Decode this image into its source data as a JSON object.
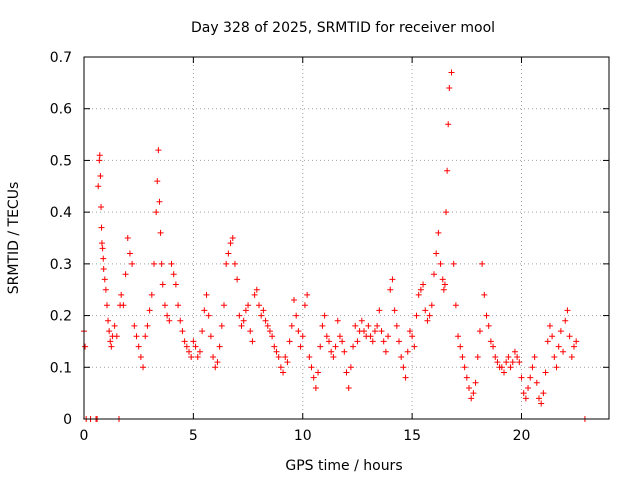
{
  "chart_data": {
    "type": "scatter",
    "title": "Day 328 of 2025, SRMTID for receiver mool",
    "xlabel": "GPS time / hours",
    "ylabel": "SRMTID / TECUs",
    "xlim": [
      0,
      24
    ],
    "ylim": [
      0,
      0.7
    ],
    "xticks": [
      0,
      5,
      10,
      15,
      20
    ],
    "xtick_labels": [
      "0",
      "5",
      "10",
      "15",
      "20"
    ],
    "yticks": [
      0,
      0.1,
      0.2,
      0.3,
      0.4,
      0.5,
      0.6,
      0.7
    ],
    "ytick_labels": [
      "0",
      "0.1",
      "0.2",
      "0.3",
      "0.4",
      "0.5",
      "0.6",
      "0.7"
    ],
    "grid": true,
    "marker": "+",
    "series_color": "#ff0000",
    "series": [
      {
        "name": "SRMTID",
        "x": [
          0.0,
          0.05,
          0.1,
          0.3,
          0.55,
          0.6,
          0.65,
          0.7,
          0.72,
          0.75,
          0.78,
          0.8,
          0.82,
          0.85,
          0.88,
          0.9,
          0.95,
          1.0,
          1.05,
          1.1,
          1.15,
          1.2,
          1.25,
          1.3,
          1.4,
          1.5,
          1.6,
          1.65,
          1.7,
          1.8,
          1.9,
          2.0,
          2.1,
          2.2,
          2.3,
          2.4,
          2.5,
          2.6,
          2.7,
          2.8,
          2.9,
          3.0,
          3.1,
          3.2,
          3.3,
          3.35,
          3.4,
          3.45,
          3.5,
          3.55,
          3.6,
          3.7,
          3.8,
          3.9,
          4.0,
          4.1,
          4.2,
          4.3,
          4.4,
          4.5,
          4.6,
          4.7,
          4.8,
          4.9,
          5.0,
          5.1,
          5.2,
          5.3,
          5.4,
          5.5,
          5.6,
          5.7,
          5.8,
          5.9,
          6.0,
          6.1,
          6.2,
          6.3,
          6.4,
          6.5,
          6.6,
          6.7,
          6.8,
          6.9,
          7.0,
          7.1,
          7.2,
          7.3,
          7.4,
          7.5,
          7.6,
          7.7,
          7.8,
          7.9,
          8.0,
          8.1,
          8.2,
          8.3,
          8.4,
          8.5,
          8.6,
          8.7,
          8.8,
          8.9,
          9.0,
          9.1,
          9.2,
          9.3,
          9.4,
          9.5,
          9.6,
          9.7,
          9.8,
          9.9,
          10.0,
          10.1,
          10.2,
          10.3,
          10.4,
          10.5,
          10.6,
          10.7,
          10.8,
          10.9,
          11.0,
          11.1,
          11.2,
          11.3,
          11.4,
          11.5,
          11.6,
          11.7,
          11.8,
          11.9,
          12.0,
          12.1,
          12.2,
          12.3,
          12.4,
          12.5,
          12.6,
          12.7,
          12.8,
          12.9,
          13.0,
          13.1,
          13.2,
          13.3,
          13.4,
          13.5,
          13.6,
          13.7,
          13.8,
          13.9,
          14.0,
          14.1,
          14.2,
          14.3,
          14.4,
          14.5,
          14.6,
          14.7,
          14.8,
          14.9,
          15.0,
          15.1,
          15.2,
          15.3,
          15.4,
          15.5,
          15.6,
          15.7,
          15.8,
          15.9,
          16.0,
          16.1,
          16.2,
          16.3,
          16.4,
          16.45,
          16.5,
          16.55,
          16.6,
          16.65,
          16.7,
          16.8,
          16.9,
          17.0,
          17.1,
          17.2,
          17.3,
          17.4,
          17.5,
          17.6,
          17.7,
          17.8,
          17.9,
          18.0,
          18.1,
          18.2,
          18.3,
          18.4,
          18.5,
          18.6,
          18.7,
          18.8,
          18.9,
          19.0,
          19.1,
          19.2,
          19.3,
          19.4,
          19.5,
          19.6,
          19.7,
          19.8,
          19.9,
          20.0,
          20.1,
          20.2,
          20.3,
          20.4,
          20.5,
          20.6,
          20.7,
          20.8,
          20.9,
          21.0,
          21.1,
          21.2,
          21.3,
          21.4,
          21.5,
          21.6,
          21.7,
          21.8,
          21.9,
          22.0,
          22.1,
          22.2,
          22.3,
          22.4,
          22.5,
          22.9
        ],
        "y": [
          0.17,
          0.14,
          0.0,
          0.0,
          0.0,
          0.0,
          0.45,
          0.5,
          0.51,
          0.47,
          0.41,
          0.37,
          0.34,
          0.33,
          0.31,
          0.29,
          0.27,
          0.25,
          0.22,
          0.19,
          0.17,
          0.15,
          0.14,
          0.16,
          0.18,
          0.16,
          0.0,
          0.22,
          0.24,
          0.22,
          0.28,
          0.35,
          0.32,
          0.3,
          0.18,
          0.16,
          0.14,
          0.12,
          0.1,
          0.16,
          0.18,
          0.21,
          0.24,
          0.3,
          0.4,
          0.46,
          0.52,
          0.42,
          0.36,
          0.3,
          0.26,
          0.22,
          0.2,
          0.19,
          0.3,
          0.28,
          0.26,
          0.22,
          0.19,
          0.17,
          0.15,
          0.14,
          0.13,
          0.12,
          0.15,
          0.14,
          0.12,
          0.13,
          0.17,
          0.21,
          0.24,
          0.2,
          0.16,
          0.12,
          0.1,
          0.11,
          0.14,
          0.18,
          0.22,
          0.3,
          0.32,
          0.34,
          0.35,
          0.3,
          0.27,
          0.2,
          0.18,
          0.19,
          0.21,
          0.22,
          0.17,
          0.15,
          0.24,
          0.25,
          0.22,
          0.2,
          0.21,
          0.19,
          0.18,
          0.17,
          0.16,
          0.14,
          0.13,
          0.12,
          0.1,
          0.09,
          0.12,
          0.11,
          0.15,
          0.18,
          0.23,
          0.2,
          0.17,
          0.14,
          0.16,
          0.22,
          0.24,
          0.12,
          0.1,
          0.08,
          0.06,
          0.09,
          0.14,
          0.18,
          0.2,
          0.16,
          0.15,
          0.13,
          0.12,
          0.14,
          0.19,
          0.16,
          0.15,
          0.13,
          0.09,
          0.06,
          0.1,
          0.14,
          0.18,
          0.15,
          0.17,
          0.19,
          0.17,
          0.16,
          0.18,
          0.16,
          0.15,
          0.17,
          0.18,
          0.21,
          0.17,
          0.15,
          0.13,
          0.16,
          0.25,
          0.27,
          0.21,
          0.18,
          0.15,
          0.12,
          0.1,
          0.08,
          0.13,
          0.17,
          0.16,
          0.14,
          0.2,
          0.24,
          0.25,
          0.26,
          0.21,
          0.19,
          0.2,
          0.22,
          0.28,
          0.32,
          0.36,
          0.3,
          0.27,
          0.25,
          0.26,
          0.4,
          0.48,
          0.57,
          0.64,
          0.67,
          0.3,
          0.22,
          0.16,
          0.14,
          0.12,
          0.1,
          0.08,
          0.06,
          0.04,
          0.05,
          0.07,
          0.12,
          0.17,
          0.3,
          0.24,
          0.2,
          0.18,
          0.15,
          0.14,
          0.12,
          0.11,
          0.1,
          0.1,
          0.09,
          0.11,
          0.12,
          0.1,
          0.11,
          0.13,
          0.12,
          0.11,
          0.08,
          0.05,
          0.04,
          0.06,
          0.08,
          0.1,
          0.12,
          0.07,
          0.04,
          0.03,
          0.05,
          0.09,
          0.15,
          0.18,
          0.16,
          0.12,
          0.1,
          0.14,
          0.17,
          0.13,
          0.19,
          0.21,
          0.16,
          0.12,
          0.14,
          0.15,
          0.0
        ]
      }
    ]
  }
}
